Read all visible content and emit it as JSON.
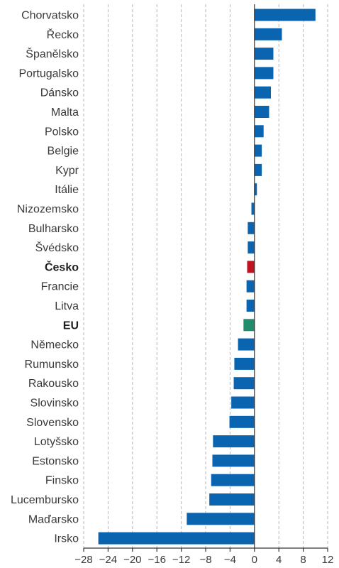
{
  "chart_data": {
    "type": "bar",
    "orientation": "horizontal",
    "title": "",
    "xlabel": "",
    "ylabel": "",
    "xlim": [
      -28,
      12
    ],
    "x_ticks": [
      -28,
      -24,
      -20,
      -16,
      -12,
      -8,
      -4,
      0,
      4,
      8,
      12
    ],
    "x_tick_labels": [
      "−28",
      "−24",
      "−20",
      "−16",
      "−12",
      "−8",
      "−4",
      "0",
      "4",
      "8",
      "12"
    ],
    "grid": "vertical dashed",
    "categories": [
      "Chorvatsko",
      "Řecko",
      "Španělsko",
      "Portugalsko",
      "Dánsko",
      "Malta",
      "Polsko",
      "Belgie",
      "Kypr",
      "Itálie",
      "Nizozemsko",
      "Bulharsko",
      "Švédsko",
      "Česko",
      "Francie",
      "Litva",
      "EU",
      "Německo",
      "Rumunsko",
      "Rakousko",
      "Slovinsko",
      "Slovensko",
      "Lotyšsko",
      "Estonsko",
      "Finsko",
      "Lucembursko",
      "Maďarsko",
      "Irsko"
    ],
    "values": [
      10.0,
      4.5,
      3.1,
      3.1,
      2.7,
      2.4,
      1.5,
      1.2,
      1.2,
      0.4,
      -0.5,
      -1.1,
      -1.1,
      -1.2,
      -1.3,
      -1.3,
      -1.8,
      -2.7,
      -3.3,
      -3.4,
      -3.8,
      -4.1,
      -6.8,
      -6.9,
      -7.1,
      -7.4,
      -11.1,
      -25.6
    ],
    "highlight": {
      "Česko": "red",
      "EU": "green"
    },
    "bold_categories": [
      "Česko",
      "EU"
    ]
  },
  "colors": {
    "default": "#0b64b0",
    "red": "#c1121f",
    "green": "#1f8c6e",
    "grid": "#b7b7b7",
    "axis": "#333333"
  }
}
